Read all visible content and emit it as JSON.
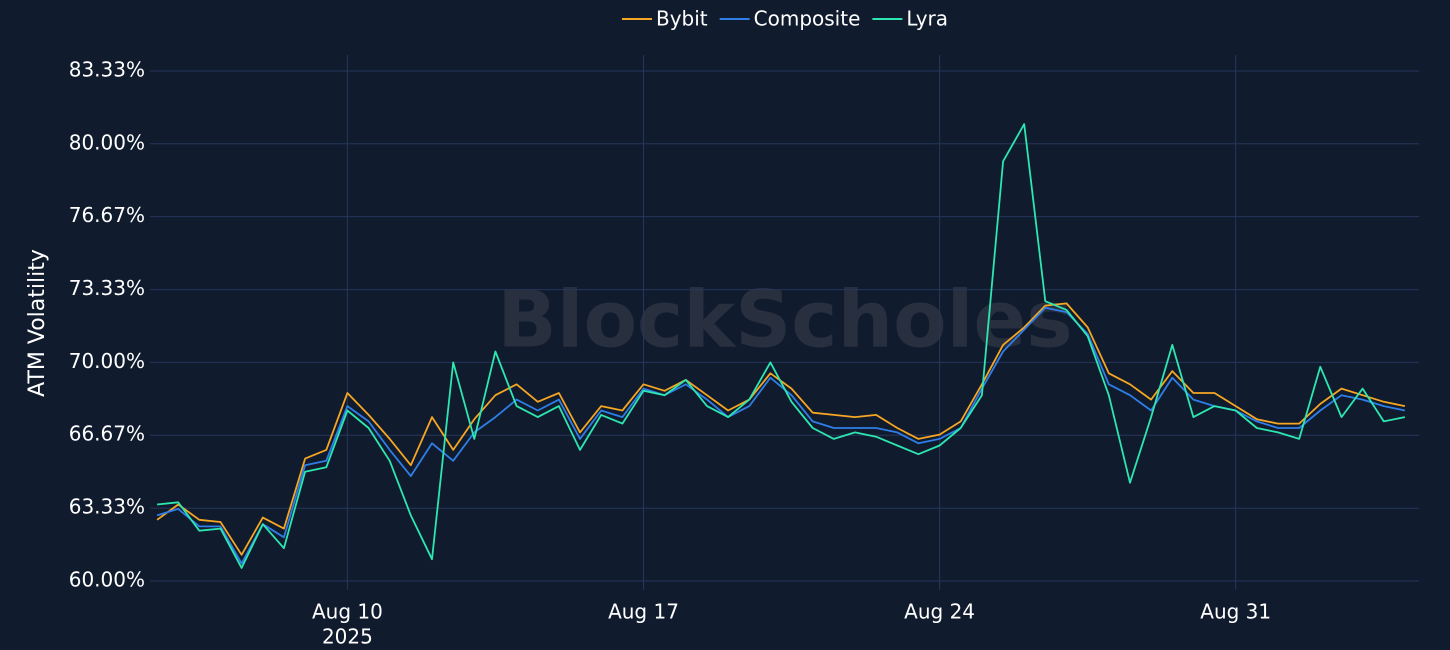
{
  "chart_data": {
    "type": "line",
    "y_label": "ATM Volatility",
    "watermark": "BlockScholes",
    "x_year_label": "2025",
    "x": [
      "2025-08-05 12:00",
      "2025-08-06 00:00",
      "2025-08-06 12:00",
      "2025-08-07 00:00",
      "2025-08-07 12:00",
      "2025-08-08 00:00",
      "2025-08-08 12:00",
      "2025-08-09 00:00",
      "2025-08-09 12:00",
      "2025-08-10 00:00",
      "2025-08-10 12:00",
      "2025-08-11 00:00",
      "2025-08-11 12:00",
      "2025-08-12 00:00",
      "2025-08-12 12:00",
      "2025-08-13 00:00",
      "2025-08-13 12:00",
      "2025-08-14 00:00",
      "2025-08-14 12:00",
      "2025-08-15 00:00",
      "2025-08-15 12:00",
      "2025-08-16 00:00",
      "2025-08-16 12:00",
      "2025-08-17 00:00",
      "2025-08-17 12:00",
      "2025-08-18 00:00",
      "2025-08-18 12:00",
      "2025-08-19 00:00",
      "2025-08-19 12:00",
      "2025-08-20 00:00",
      "2025-08-20 12:00",
      "2025-08-21 00:00",
      "2025-08-21 12:00",
      "2025-08-22 00:00",
      "2025-08-22 12:00",
      "2025-08-23 00:00",
      "2025-08-23 12:00",
      "2025-08-24 00:00",
      "2025-08-24 12:00",
      "2025-08-25 00:00",
      "2025-08-25 12:00",
      "2025-08-26 00:00",
      "2025-08-26 12:00",
      "2025-08-27 00:00",
      "2025-08-27 12:00",
      "2025-08-28 00:00",
      "2025-08-28 12:00",
      "2025-08-29 00:00",
      "2025-08-29 12:00",
      "2025-08-30 00:00",
      "2025-08-30 12:00",
      "2025-08-31 00:00",
      "2025-08-31 12:00",
      "2025-09-01 00:00",
      "2025-09-01 12:00",
      "2025-09-02 00:00",
      "2025-09-02 12:00",
      "2025-09-03 00:00",
      "2025-09-03 12:00",
      "2025-09-04 00:00"
    ],
    "series": [
      {
        "name": "Bybit",
        "color": "#f5a623",
        "values": [
          62.8,
          63.5,
          62.8,
          62.7,
          61.2,
          62.9,
          62.4,
          65.6,
          66.0,
          68.6,
          67.6,
          66.5,
          65.3,
          67.5,
          66.0,
          67.4,
          68.5,
          69.0,
          68.2,
          68.6,
          66.8,
          68.0,
          67.8,
          69.0,
          68.7,
          69.2,
          68.5,
          67.8,
          68.3,
          69.5,
          68.8,
          67.7,
          67.6,
          67.5,
          67.6,
          67.0,
          66.5,
          66.7,
          67.3,
          69.0,
          70.8,
          71.6,
          72.6,
          72.7,
          71.6,
          69.5,
          69.0,
          68.3,
          69.6,
          68.6,
          68.6,
          68.0,
          67.4,
          67.2,
          67.2,
          68.1,
          68.8,
          68.5,
          68.2,
          68.0
        ]
      },
      {
        "name": "Composite",
        "color": "#2f7ee8",
        "values": [
          63.0,
          63.3,
          62.5,
          62.5,
          60.8,
          62.6,
          62.0,
          65.3,
          65.5,
          68.0,
          67.3,
          66.0,
          64.8,
          66.3,
          65.5,
          66.8,
          67.5,
          68.3,
          67.8,
          68.3,
          66.5,
          67.8,
          67.5,
          68.8,
          68.5,
          69.0,
          68.3,
          67.5,
          68.0,
          69.3,
          68.5,
          67.3,
          67.0,
          67.0,
          67.0,
          66.8,
          66.3,
          66.5,
          67.0,
          68.8,
          70.5,
          71.5,
          72.5,
          72.3,
          71.3,
          69.0,
          68.5,
          67.8,
          69.3,
          68.3,
          68.0,
          67.8,
          67.3,
          67.0,
          67.0,
          67.8,
          68.5,
          68.3,
          68.0,
          67.8
        ]
      },
      {
        "name": "Lyra",
        "color": "#2ee6b0",
        "values": [
          63.5,
          63.6,
          62.3,
          62.4,
          60.6,
          62.6,
          61.5,
          65.0,
          65.2,
          67.8,
          67.0,
          65.5,
          63.0,
          61.0,
          70.0,
          66.5,
          70.5,
          68.0,
          67.5,
          68.0,
          66.0,
          67.6,
          67.2,
          68.7,
          68.5,
          69.2,
          68.0,
          67.5,
          68.3,
          70.0,
          68.2,
          67.0,
          66.5,
          66.8,
          66.6,
          66.2,
          65.8,
          66.2,
          67.0,
          68.5,
          79.2,
          80.9,
          72.8,
          72.4,
          71.2,
          68.5,
          64.5,
          67.5,
          70.8,
          67.5,
          68.0,
          67.8,
          67.0,
          66.8,
          66.5,
          69.8,
          67.5,
          68.8,
          67.3,
          67.5
        ]
      }
    ],
    "xlim": [
      "2025-08-05 08:00",
      "2025-09-04 08:00"
    ],
    "xticks": [
      {
        "value": "2025-08-10 00:00",
        "label": "Aug 10"
      },
      {
        "value": "2025-08-17 00:00",
        "label": "Aug 17"
      },
      {
        "value": "2025-08-24 00:00",
        "label": "Aug 24"
      },
      {
        "value": "2025-08-31 00:00",
        "label": "Aug 31"
      }
    ],
    "ylim": [
      59.59,
      84.06
    ],
    "yticks": [
      {
        "value": 60,
        "label": "60.00%"
      },
      {
        "value": 63.33,
        "label": "63.33%"
      },
      {
        "value": 66.67,
        "label": "66.67%"
      },
      {
        "value": 70,
        "label": "70.00%"
      },
      {
        "value": 73.33,
        "label": "73.33%"
      },
      {
        "value": 76.67,
        "label": "76.67%"
      },
      {
        "value": 80,
        "label": "80.00%"
      },
      {
        "value": 83.33,
        "label": "83.33%"
      }
    ],
    "grid": true,
    "legend": "top"
  }
}
